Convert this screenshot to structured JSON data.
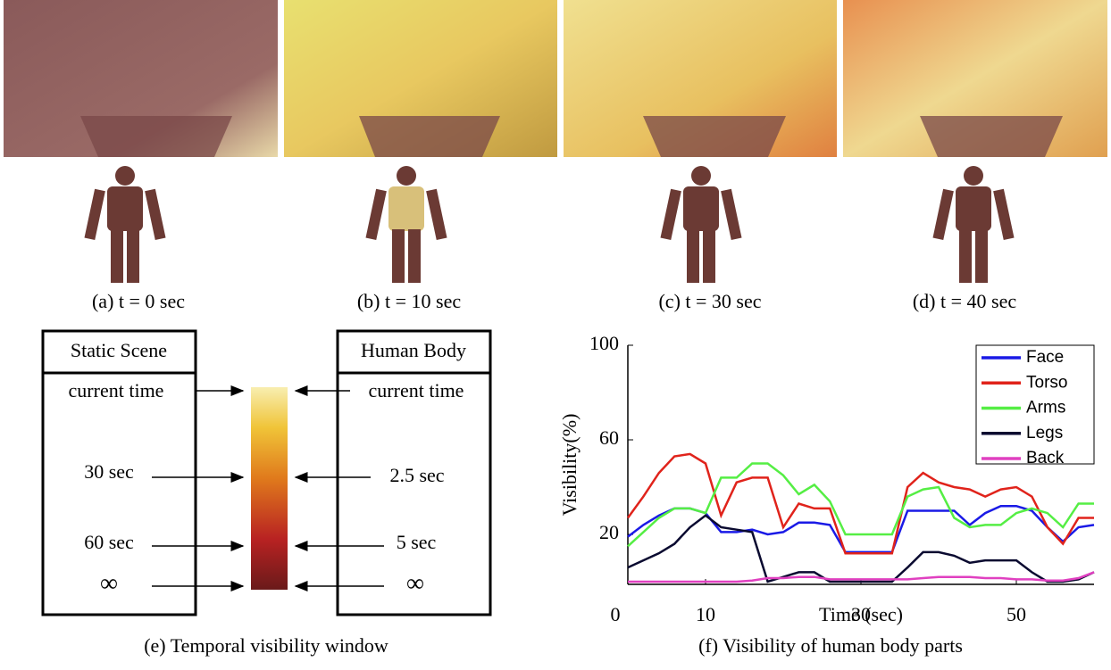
{
  "panels": [
    {
      "caption": "(a) t = 0 sec"
    },
    {
      "caption": "(b) t = 10 sec"
    },
    {
      "caption": "(c) t = 30 sec"
    },
    {
      "caption": "(d) t = 40 sec"
    }
  ],
  "diagram": {
    "caption": "(e) Temporal visibility window",
    "left": {
      "title": "Static Scene",
      "labels": [
        "current time",
        "30 sec",
        "60 sec",
        "∞"
      ]
    },
    "right": {
      "title": "Human Body",
      "labels": [
        "current time",
        "2.5 sec",
        "5 sec",
        "∞"
      ]
    }
  },
  "chart_data": {
    "type": "line",
    "caption": "(f) Visibility of human body parts",
    "x_label": "Time (sec)",
    "y_label": "Visibility(%)",
    "x": [
      0,
      2,
      4,
      6,
      8,
      10,
      12,
      14,
      16,
      18,
      20,
      22,
      24,
      26,
      28,
      30,
      32,
      34,
      36,
      38,
      40,
      42,
      44,
      46,
      48,
      50,
      52,
      54,
      56,
      58,
      60
    ],
    "xlim": [
      0,
      60
    ],
    "ylim": [
      0,
      100
    ],
    "xticks": [
      0,
      10,
      30,
      50
    ],
    "yticks": [
      20,
      60,
      100
    ],
    "legend": "upper right",
    "series": [
      {
        "name": "Face",
        "color": "#1a1ae6",
        "values": [
          19,
          24,
          28,
          31,
          31,
          29,
          21,
          21,
          22,
          20,
          21,
          25,
          25,
          24,
          12.5,
          12.5,
          12.5,
          12.5,
          30,
          30,
          30,
          30,
          24,
          29,
          32,
          32,
          30,
          23,
          17,
          23,
          24
        ]
      },
      {
        "name": "Torso",
        "color": "#e0231b",
        "values": [
          27,
          36,
          46,
          53,
          54,
          50,
          28,
          42,
          44,
          44,
          23,
          33,
          31,
          31,
          12,
          12,
          12,
          12,
          40,
          46,
          42,
          40,
          39,
          36,
          39,
          40,
          36,
          23,
          16,
          27,
          27
        ]
      },
      {
        "name": "Arms",
        "color": "#55ee44",
        "values": [
          15,
          21,
          27,
          31,
          31,
          29,
          44,
          44,
          50,
          50,
          45,
          37,
          41,
          34,
          20,
          20,
          20,
          20,
          36,
          39,
          40,
          27,
          23,
          24,
          24,
          29,
          31,
          29,
          23,
          33,
          33
        ]
      },
      {
        "name": "Legs",
        "color": "#0a0a30",
        "values": [
          6,
          9,
          12,
          16,
          23,
          28,
          23,
          22,
          21,
          0,
          2,
          4,
          4,
          0,
          0,
          0,
          0,
          0,
          6,
          12.5,
          12.5,
          11,
          8,
          9,
          9,
          9,
          4,
          0,
          0,
          1,
          4
        ]
      },
      {
        "name": "Back",
        "color": "#e040c0",
        "values": [
          0,
          0,
          0,
          0,
          0,
          0,
          0,
          0,
          0.5,
          1.5,
          1.5,
          2,
          2,
          1,
          1,
          1,
          1,
          1,
          1,
          1.5,
          2,
          2,
          2,
          1.5,
          1.5,
          1,
          1,
          0.5,
          0.5,
          1.5,
          4
        ]
      }
    ]
  }
}
